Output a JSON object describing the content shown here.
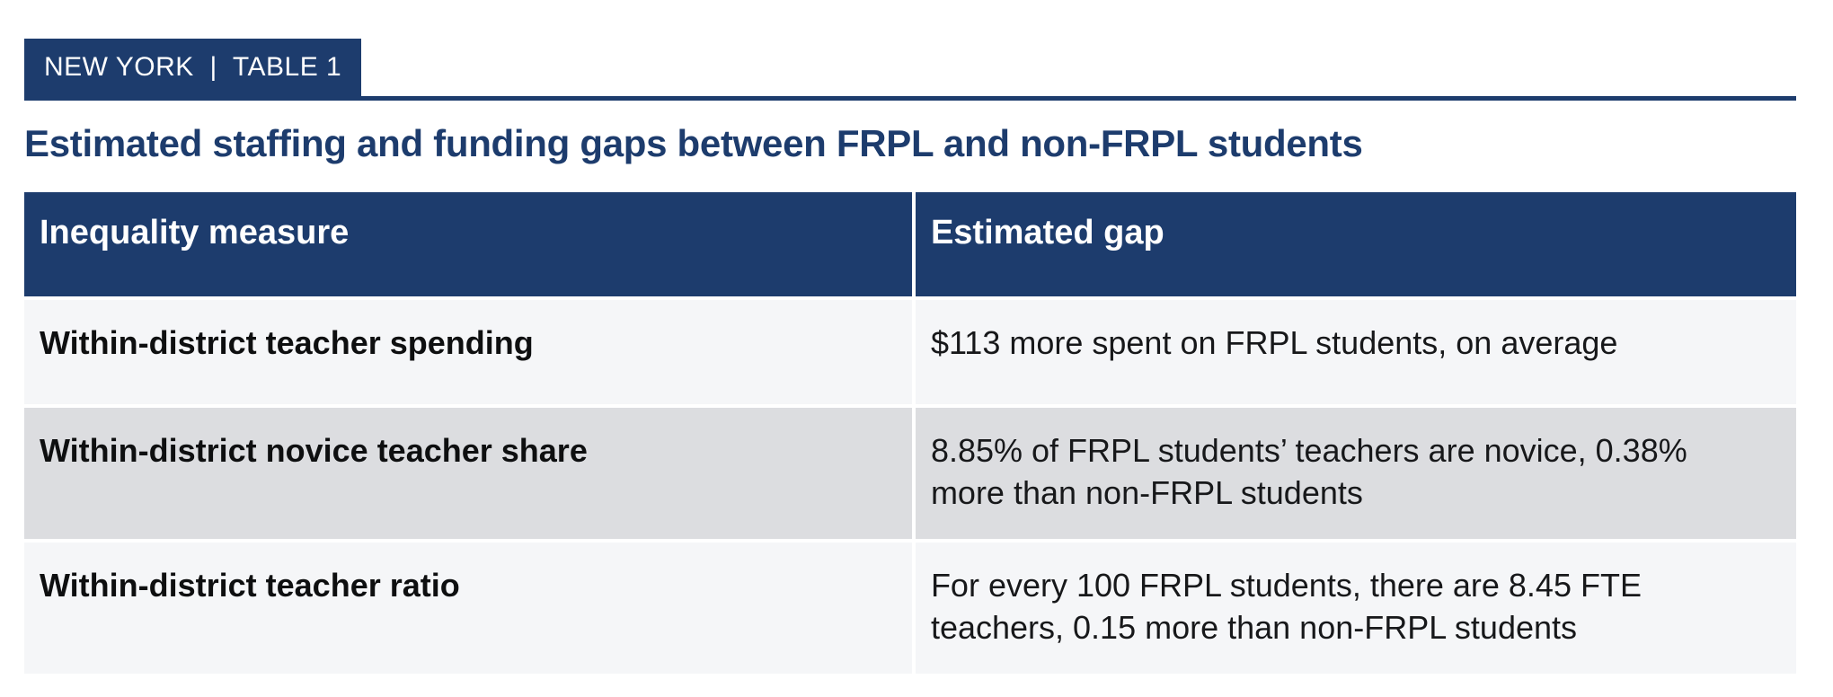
{
  "page": {
    "tag": "NEW YORK  |  TABLE 1",
    "title": "Estimated staffing and funding gaps between FRPL and non-FRPL students"
  },
  "table": {
    "columns": [
      "Inequality measure",
      "Estimated gap"
    ],
    "rows": [
      {
        "measure": "Within-district teacher spending",
        "gap": "$113 more spent on FRPL students, on average"
      },
      {
        "measure": "Within-district novice teacher share",
        "gap": "8.85% of FRPL students’ teachers are novice, 0.38%\nmore than non-FRPL students"
      },
      {
        "measure": "Within-district teacher ratio",
        "gap": "For every 100 FRPL students, there are 8.45 FTE\nteachers, 0.15 more than non-FRPL students"
      }
    ]
  },
  "colors": {
    "navy": "#1d3c6d",
    "header_text": "#ffffff",
    "row_light": "#f5f6f8",
    "row_gray": "#dcdde0",
    "body_text": "#17181a"
  }
}
